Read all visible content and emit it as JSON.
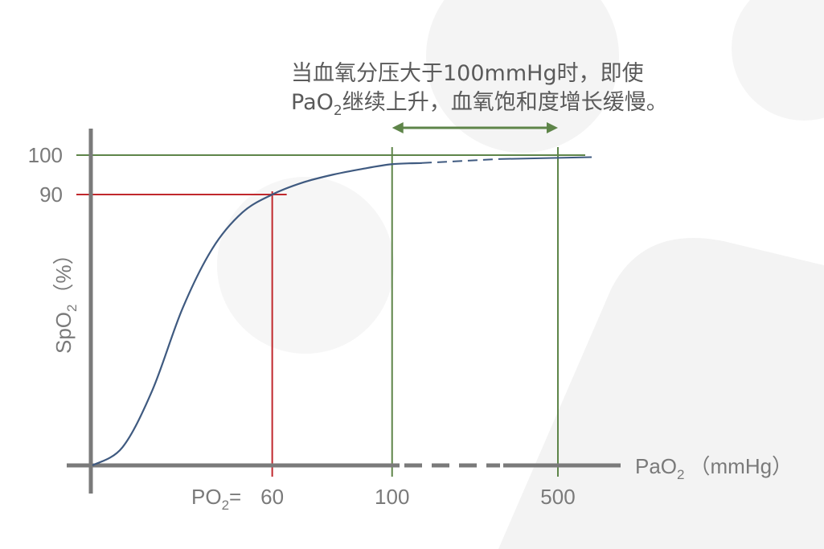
{
  "colors": {
    "axis": "#7a7a7a",
    "curve": "#3f5a80",
    "marker90": "#c0282d",
    "reference": "#5e8549",
    "text": "#7a7a7a",
    "annotation_text": "#5a5a5a"
  },
  "annotation": {
    "line1": "当血氧分压大于100mmHg时，即使",
    "line2_pre": "PaO",
    "line2_sub": "2",
    "line2_post": "继续上升，血氧饱和度增长缓慢。"
  },
  "x_axis": {
    "label_main": "PaO",
    "label_sub": "2",
    "label_unit": "（mmHg）",
    "prefix_main": "PO",
    "prefix_sub": "2",
    "prefix_eq": "=",
    "axis_break": true
  },
  "y_axis": {
    "label_main": "SpO",
    "label_sub": "2",
    "label_unit": "（%）"
  },
  "chart_data": {
    "type": "line",
    "x_ticks": [
      "60",
      "100",
      "500"
    ],
    "y_ticks": [
      "100",
      "90"
    ],
    "series": [
      {
        "points": [
          {
            "x": 0,
            "y": 0
          },
          {
            "x": 10,
            "y": 6
          },
          {
            "x": 20,
            "y": 25
          },
          {
            "x": 30,
            "y": 52
          },
          {
            "x": 40,
            "y": 72
          },
          {
            "x": 50,
            "y": 84
          },
          {
            "x": 60,
            "y": 90
          },
          {
            "x": 70,
            "y": 93
          },
          {
            "x": 80,
            "y": 95
          },
          {
            "x": 90,
            "y": 96.5
          },
          {
            "x": 100,
            "y": 97.7
          },
          {
            "x": 110,
            "y": 98
          },
          {
            "x": 500,
            "y": 99.5
          }
        ]
      }
    ],
    "reference_lines": [
      {
        "type": "horizontal",
        "y": 100
      },
      {
        "type": "horizontal",
        "y": 90
      },
      {
        "type": "vertical",
        "x": 60
      },
      {
        "type": "vertical",
        "x": 100
      },
      {
        "type": "vertical",
        "x": 500
      }
    ],
    "range_arrow": {
      "from": 100,
      "to": 500
    },
    "ylim": [
      0,
      100
    ]
  }
}
